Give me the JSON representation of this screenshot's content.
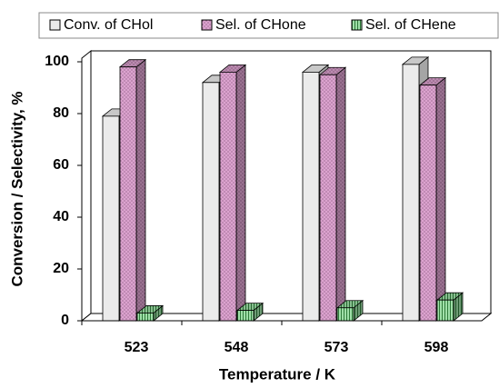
{
  "chart_data": {
    "type": "bar3d",
    "x_label": "Temperature / K",
    "y_label": "Conversion / Selectivity, %",
    "categories": [
      "523",
      "548",
      "573",
      "598"
    ],
    "series": [
      {
        "name": "Conv. of CHol",
        "color": "#ebebeb",
        "values": [
          79,
          92,
          96,
          99
        ]
      },
      {
        "name": "Sel. of CHone",
        "color": "#dca3cf",
        "values": [
          98,
          96,
          95,
          91
        ]
      },
      {
        "name": "Sel. of CHene",
        "color": "#9fdfa8",
        "values": [
          3,
          4,
          5,
          8
        ]
      }
    ],
    "ylim": [
      0,
      100
    ],
    "yticks": [
      0,
      20,
      40,
      60,
      80,
      100
    ],
    "legend": "top",
    "grid": false
  }
}
